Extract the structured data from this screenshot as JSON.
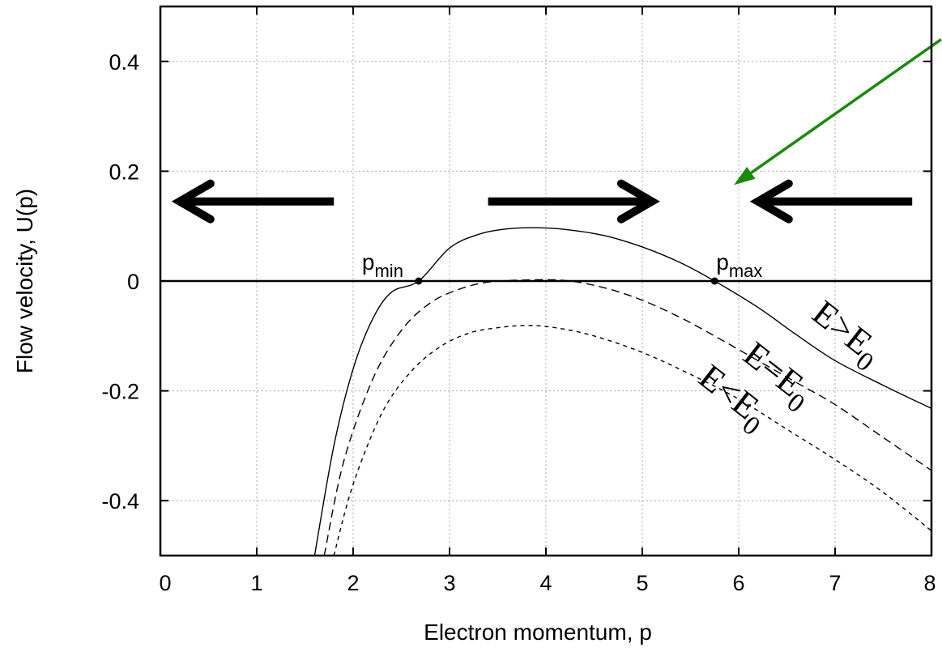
{
  "chart_data": {
    "type": "line",
    "xlabel": "Electron momentum, p",
    "ylabel": "Flow velocity, U(p)",
    "xlim": [
      0,
      8
    ],
    "ylim": [
      -0.5,
      0.5
    ],
    "grid": true,
    "x_ticks": [
      "0",
      "1",
      "2",
      "3",
      "4",
      "5",
      "6",
      "7",
      "8"
    ],
    "y_ticks": [
      {
        "value": 0.4,
        "label": "0.4"
      },
      {
        "value": 0.2,
        "label": "0.2"
      },
      {
        "value": 0,
        "label": "0"
      },
      {
        "value": -0.2,
        "label": "-0.2"
      },
      {
        "value": -0.4,
        "label": "-0.4"
      }
    ],
    "series": [
      {
        "name": "E>E0",
        "label_main": "E>E",
        "label_sub": "0",
        "style": "solid",
        "points": [
          [
            1.6,
            -0.5
          ],
          [
            1.8,
            -0.3
          ],
          [
            2.0,
            -0.16
          ],
          [
            2.2,
            -0.07
          ],
          [
            2.4,
            -0.02
          ],
          [
            2.68,
            0.0
          ],
          [
            3.0,
            0.06
          ],
          [
            3.3,
            0.085
          ],
          [
            3.6,
            0.095
          ],
          [
            3.9,
            0.097
          ],
          [
            4.2,
            0.094
          ],
          [
            4.6,
            0.083
          ],
          [
            5.0,
            0.062
          ],
          [
            5.4,
            0.033
          ],
          [
            5.75,
            0.0
          ],
          [
            6.2,
            -0.048
          ],
          [
            6.6,
            -0.098
          ],
          [
            7.0,
            -0.145
          ],
          [
            7.5,
            -0.19
          ],
          [
            8.0,
            -0.232
          ]
        ]
      },
      {
        "name": "E=E0",
        "label_main": "E=E",
        "label_sub": "0",
        "style": "dashed",
        "points": [
          [
            1.7,
            -0.5
          ],
          [
            1.9,
            -0.33
          ],
          [
            2.2,
            -0.18
          ],
          [
            2.5,
            -0.09
          ],
          [
            2.8,
            -0.04
          ],
          [
            3.1,
            -0.015
          ],
          [
            3.4,
            -0.002
          ],
          [
            3.8,
            0.002
          ],
          [
            4.2,
            0.001
          ],
          [
            4.6,
            -0.012
          ],
          [
            5.0,
            -0.035
          ],
          [
            5.4,
            -0.067
          ],
          [
            5.8,
            -0.105
          ],
          [
            6.2,
            -0.145
          ],
          [
            6.6,
            -0.185
          ],
          [
            7.0,
            -0.225
          ],
          [
            7.5,
            -0.285
          ],
          [
            8.0,
            -0.345
          ]
        ]
      },
      {
        "name": "E<E0",
        "label_main": "E<E",
        "label_sub": "0",
        "style": "dotted",
        "points": [
          [
            1.8,
            -0.5
          ],
          [
            2.0,
            -0.37
          ],
          [
            2.3,
            -0.24
          ],
          [
            2.6,
            -0.165
          ],
          [
            2.9,
            -0.12
          ],
          [
            3.2,
            -0.095
          ],
          [
            3.5,
            -0.085
          ],
          [
            3.8,
            -0.081
          ],
          [
            4.1,
            -0.085
          ],
          [
            4.5,
            -0.1
          ],
          [
            5.0,
            -0.13
          ],
          [
            5.5,
            -0.17
          ],
          [
            6.0,
            -0.215
          ],
          [
            6.5,
            -0.27
          ],
          [
            7.0,
            -0.325
          ],
          [
            7.5,
            -0.385
          ],
          [
            8.0,
            -0.455
          ]
        ]
      }
    ],
    "zero_line": {
      "y": 0
    },
    "marked_points": [
      {
        "name": "p_min",
        "label_main": "p",
        "label_sub": "min",
        "x": 2.68,
        "y": 0
      },
      {
        "name": "p_max",
        "label_main": "p",
        "label_sub": "max",
        "x": 5.75,
        "y": 0
      }
    ],
    "flow_arrows": [
      {
        "direction": "left",
        "x_from": 1.8,
        "x_to": 0.2,
        "y": 0.145
      },
      {
        "direction": "right",
        "x_from": 3.4,
        "x_to": 5.1,
        "y": 0.145
      },
      {
        "direction": "left",
        "x_from": 7.8,
        "x_to": 6.2,
        "y": 0.145
      }
    ],
    "pointer_arrow": {
      "color": "#1a8a0a",
      "x_from": 8.1,
      "y_from": 0.44,
      "x_to": 5.95,
      "y_to": 0.175
    }
  }
}
